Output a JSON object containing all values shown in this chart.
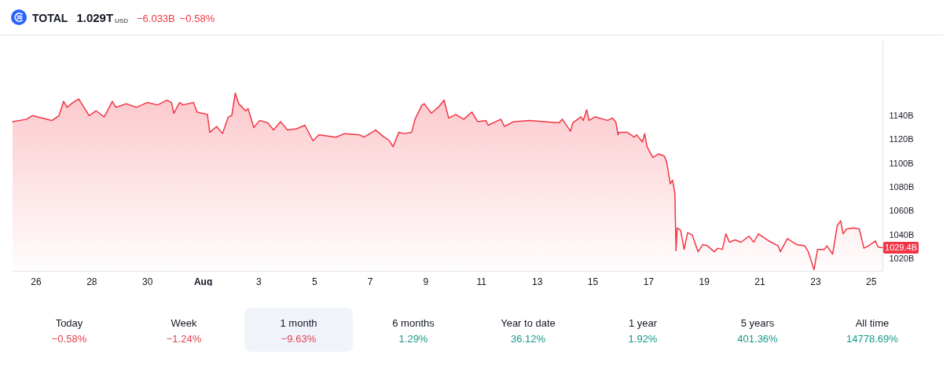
{
  "chart_data": [
    {
      "type": "area",
      "title": "TOTAL",
      "annotations": [
        "1.029T",
        "USD",
        "−6.033B",
        "−0.58%",
        "1029.4B"
      ],
      "x": [
        "--07-25T04:00",
        "--07-25T16:00",
        "--07-25T21:00",
        "--07-26T14:00",
        "--07-26T20:00",
        "--07-27T00:00",
        "--07-27T03:00",
        "--07-27T08:00",
        "--07-27T13:00",
        "--07-27T15:00",
        "--07-27T22:00",
        "--07-28T04:00",
        "--07-28T11:00",
        "--07-28T18:00",
        "--07-28T21:00",
        "--07-29T06:00",
        "--07-29T15:00",
        "--07-30T00:00",
        "--07-30T09:00",
        "--07-30T17:00",
        "--07-30T21:00",
        "--07-30T23:00",
        "--07-31T04:00",
        "--07-31T07:00",
        "--07-31T16:00",
        "--07-31T19:00",
        "--08-01T04:00",
        "--08-01T06:00",
        "--08-01T12:00",
        "--08-01T17:00",
        "--08-01T22:00",
        "--08-02T01:00",
        "--08-02T04:00",
        "--08-02T07:00",
        "--08-02T13:00",
        "--08-02T15:00",
        "--08-02T20:00",
        "--08-03T01:00",
        "--08-03T08:00",
        "--08-03T13:00",
        "--08-03T19:00",
        "--08-04T01:00",
        "--08-04T09:00",
        "--08-04T16:00",
        "--08-04T23:00",
        "--08-05T04:00",
        "--08-05T19:00",
        "--08-06T02:00",
        "--08-06T15:00",
        "--08-06T19:00",
        "--08-07T05:00",
        "--08-07T11:00",
        "--08-07T17:00",
        "--08-07T20:00",
        "--08-08T01:00",
        "--08-08T06:00",
        "--08-08T12:00",
        "--08-08T15:00",
        "--08-08T21:00",
        "--08-08T23:00",
        "--08-09T05:00",
        "--08-09T11:00",
        "--08-09T16:00",
        "--08-09T20:00",
        "--08-10T02:00",
        "--08-10T09:00",
        "--08-10T16:00",
        "--08-10T21:00",
        "--08-11T04:00",
        "--08-11T06:00",
        "--08-11T17:00",
        "--08-11T20:00",
        "--08-12T04:00",
        "--08-12T18:00",
        "--08-13T07:00",
        "--08-13T19:00",
        "--08-13T22:00",
        "--08-14T05:00",
        "--08-14T07:00",
        "--08-14T14:00",
        "--08-14T16:00",
        "--08-14T19:00",
        "--08-14T21:00",
        "--08-15T02:00",
        "--08-15T13:00",
        "--08-15T17:00",
        "--08-15T20:00",
        "--08-15T22:00",
        "--08-15T23:00",
        "--08-16T06:00",
        "--08-16T12:00",
        "--08-16T14:00",
        "--08-16T19:00",
        "--08-16T21:00",
        "--08-16T23:00",
        "--08-17T04:00",
        "--08-17T09:00",
        "--08-17T14:00",
        "--08-17T16:00",
        "--08-17T19:00",
        "--08-17T21:00",
        "--08-17T23:00",
        "--08-18T00:00",
        "--08-18T01:00",
        "--08-18T04:00",
        "--08-18T07:00",
        "--08-18T10:00",
        "--08-18T14:00",
        "--08-18T19:00",
        "--08-18T23:00",
        "--08-19T03:00",
        "--08-19T09:00",
        "--08-19T12:00",
        "--08-19T16:00",
        "--08-19T19:00",
        "--08-19T22:00",
        "--08-20T03:00",
        "--08-20T08:00",
        "--08-20T15:00",
        "--08-20T19:00",
        "--08-20T23:00",
        "--08-21T08:00",
        "--08-21T16:00",
        "--08-21T18:00",
        "--08-22T00:00",
        "--08-22T08:00",
        "--08-22T15:00",
        "--08-22T18:00",
        "--08-22T20:00",
        "--08-22T23:00",
        "--08-23T02:00",
        "--08-23T08:00",
        "--08-23T10:00",
        "--08-23T15:00",
        "--08-23T19:00",
        "--08-23T22:00",
        "--08-24T00:00",
        "--08-24T03:00",
        "--08-24T09:00",
        "--08-24T14:00",
        "--08-24T18:00",
        "--08-24T22:00",
        "--08-25T04:00",
        "--08-25T06:00",
        "--08-25T10:00"
      ],
      "values": [
        1135,
        1137,
        1140,
        1136,
        1140,
        1152,
        1147,
        1151,
        1154,
        1151,
        1140,
        1144,
        1139,
        1152,
        1147,
        1150,
        1147,
        1151,
        1149,
        1153,
        1151,
        1142,
        1151,
        1149,
        1151,
        1143,
        1141,
        1126,
        1131,
        1125,
        1139,
        1140,
        1159,
        1150,
        1144,
        1146,
        1130,
        1136,
        1134,
        1128,
        1135,
        1128,
        1129,
        1132,
        1119,
        1124,
        1122,
        1125,
        1124,
        1122,
        1128,
        1123,
        1119,
        1114,
        1126,
        1125,
        1126,
        1137,
        1149,
        1150,
        1142,
        1147,
        1153,
        1138,
        1141,
        1137,
        1143,
        1135,
        1136,
        1132,
        1137,
        1131,
        1135,
        1136,
        1135,
        1134,
        1137,
        1127,
        1134,
        1139,
        1136,
        1145,
        1136,
        1139,
        1136,
        1138,
        1135,
        1124,
        1126,
        1126,
        1122,
        1124,
        1118,
        1125,
        1114,
        1105,
        1108,
        1106,
        1101,
        1083,
        1086,
        1075,
        1027,
        1046,
        1044,
        1028,
        1042,
        1040,
        1026,
        1032,
        1031,
        1026,
        1029,
        1028,
        1041,
        1034,
        1036,
        1034,
        1039,
        1034,
        1041,
        1035,
        1031,
        1026,
        1037,
        1032,
        1031,
        1026,
        1020,
        1011,
        1028,
        1028,
        1031,
        1024,
        1048,
        1052,
        1041,
        1045,
        1046,
        1045,
        1029,
        1031,
        1035,
        1030,
        1029.4
      ],
      "color": "#f23645",
      "xlim": [
        "--07-25T04:00",
        "--08-25T10:00"
      ],
      "xticks": [
        {
          "value": "--07-26",
          "label": "26"
        },
        {
          "value": "--07-28",
          "label": "28"
        },
        {
          "value": "--07-30",
          "label": "30"
        },
        {
          "value": "--08-01",
          "label": "Aug"
        },
        {
          "value": "--08-03",
          "label": "3"
        },
        {
          "value": "--08-05",
          "label": "5"
        },
        {
          "value": "--08-07",
          "label": "7"
        },
        {
          "value": "--08-09",
          "label": "9"
        },
        {
          "value": "--08-11",
          "label": "11"
        },
        {
          "value": "--08-13",
          "label": "13"
        },
        {
          "value": "--08-15",
          "label": "15"
        },
        {
          "value": "--08-17",
          "label": "17"
        },
        {
          "value": "--08-19",
          "label": "19"
        },
        {
          "value": "--08-21",
          "label": "21"
        },
        {
          "value": "--08-23",
          "label": "23"
        },
        {
          "value": "--08-25",
          "label": "25"
        }
      ],
      "ylim": [
        1010,
        1204
      ],
      "yticks": [
        {
          "value": 1020,
          "label": "1020B"
        },
        {
          "value": 1040,
          "label": "1040B"
        },
        {
          "value": 1060,
          "label": "1060B"
        },
        {
          "value": 1080,
          "label": "1080B"
        },
        {
          "value": 1100,
          "label": "1100B"
        },
        {
          "value": 1120,
          "label": "1120B"
        },
        {
          "value": 1140,
          "label": "1140B"
        }
      ]
    },
    {
      "type": "other",
      "categories": [
        "Today",
        "Week",
        "1 month",
        "6 months",
        "Year to date",
        "1 year",
        "5 years",
        "All time"
      ],
      "value_labels": [
        "−0.58%",
        "−1.24%",
        "−9.63%",
        "1.29%",
        "36.12%",
        "1.92%",
        "401.36%",
        "14778.69%"
      ],
      "colors": [
        "#e0424f",
        "#e0424f",
        "#e0424f",
        "#15998a",
        "#15998a",
        "#15998a",
        "#15998a",
        "#15998a"
      ]
    }
  ]
}
